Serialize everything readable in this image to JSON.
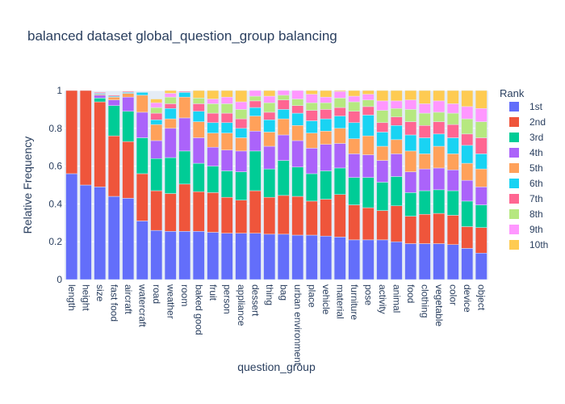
{
  "chart_data": {
    "type": "bar",
    "stacked": true,
    "title": "balanced dataset global_question_group balancing",
    "xlabel": "question_group",
    "ylabel": "Relative Frequency",
    "ylim": [
      0,
      1
    ],
    "yticks": [
      0,
      0.2,
      0.4,
      0.6,
      0.8,
      1
    ],
    "ytick_labels": [
      "0",
      "0.2",
      "0.4",
      "0.6",
      "0.8",
      "1"
    ],
    "legend_title": "Rank",
    "legend_position": "right",
    "categories": [
      "length",
      "height",
      "size",
      "fast food",
      "aircraft",
      "watercraft",
      "road",
      "weather",
      "room",
      "baked good",
      "fruit",
      "person",
      "appliance",
      "dessert",
      "thing",
      "bag",
      "urban environment",
      "place",
      "vehicle",
      "material",
      "furniture",
      "pose",
      "activity",
      "animal",
      "food",
      "clothing",
      "vegetable",
      "color",
      "device",
      "object"
    ],
    "series": [
      {
        "name": "1st",
        "color": "#636efa",
        "values": [
          0.56,
          0.5,
          0.49,
          0.44,
          0.43,
          0.31,
          0.26,
          0.255,
          0.255,
          0.255,
          0.25,
          0.245,
          0.245,
          0.245,
          0.24,
          0.24,
          0.235,
          0.235,
          0.23,
          0.225,
          0.21,
          0.21,
          0.21,
          0.2,
          0.19,
          0.19,
          0.19,
          0.185,
          0.165,
          0.14
        ]
      },
      {
        "name": "2nd",
        "color": "#ef553b",
        "values": [
          0.44,
          0.5,
          0.45,
          0.32,
          0.3,
          0.25,
          0.21,
          0.2,
          0.25,
          0.21,
          0.21,
          0.19,
          0.175,
          0.225,
          0.195,
          0.205,
          0.205,
          0.18,
          0.195,
          0.225,
          0.185,
          0.17,
          0.155,
          0.19,
          0.145,
          0.155,
          0.16,
          0.155,
          0.115,
          0.135
        ]
      },
      {
        "name": "3rd",
        "color": "#00cc96",
        "values": [
          0,
          0,
          0.02,
          0.16,
          0.16,
          0.19,
          0.17,
          0.19,
          0.175,
          0.15,
          0.14,
          0.14,
          0.15,
          0.21,
          0.15,
          0.185,
          0.155,
          0.145,
          0.15,
          0.14,
          0.145,
          0.16,
          0.15,
          0.155,
          0.125,
          0.125,
          0.125,
          0.13,
          0.135,
          0.12
        ]
      },
      {
        "name": "4th",
        "color": "#ab63fa",
        "values": [
          0,
          0,
          0.015,
          0.03,
          0.075,
          0.135,
          0.095,
          0.155,
          0.175,
          0.135,
          0.1,
          0.11,
          0.11,
          0.105,
          0.12,
          0.135,
          0.14,
          0.135,
          0.14,
          0.13,
          0.125,
          0.12,
          0.115,
          0.12,
          0.11,
          0.115,
          0.115,
          0.11,
          0.11,
          0.095
        ]
      },
      {
        "name": "5th",
        "color": "#ffa15a",
        "values": [
          0,
          0,
          0.005,
          0.015,
          0.02,
          0.09,
          0.085,
          0.05,
          0.11,
          0.085,
          0.075,
          0.09,
          0.07,
          0.08,
          0.075,
          0.085,
          0.08,
          0.08,
          0.07,
          0.08,
          0.08,
          0.1,
          0.075,
          0.075,
          0.11,
          0.08,
          0.115,
          0.085,
          0.09,
          0.095
        ]
      },
      {
        "name": "6th",
        "color": "#19d3f3",
        "values": [
          0,
          0,
          0.005,
          0.005,
          0.005,
          0.015,
          0.025,
          0.055,
          0.025,
          0.055,
          0.055,
          0.055,
          0.05,
          0.045,
          0.065,
          0.05,
          0.065,
          0.065,
          0.065,
          0.065,
          0.085,
          0.11,
          0.075,
          0.075,
          0.085,
          0.085,
          0.065,
          0.085,
          0.095,
          0.08
        ]
      },
      {
        "name": "7th",
        "color": "#ff6692",
        "values": [
          0,
          0,
          0.005,
          0.005,
          0.005,
          0,
          0.035,
          0.025,
          0.005,
          0.04,
          0.05,
          0.05,
          0.05,
          0.035,
          0.04,
          0.05,
          0.04,
          0.055,
          0.05,
          0.045,
          0.06,
          0.045,
          0.05,
          0.045,
          0.07,
          0.065,
          0.065,
          0.07,
          0.06,
          0.085
        ]
      },
      {
        "name": "8th",
        "color": "#b6e880",
        "values": [
          0,
          0,
          0,
          0,
          0,
          0,
          0.03,
          0.035,
          0,
          0.03,
          0.05,
          0.05,
          0.05,
          0.025,
          0.05,
          0.025,
          0.035,
          0.04,
          0.035,
          0.05,
          0.05,
          0.035,
          0.065,
          0.045,
          0.065,
          0.065,
          0.05,
          0.06,
          0.08,
          0.085
        ]
      },
      {
        "name": "9th",
        "color": "#ff97ff",
        "values": [
          0,
          0,
          0,
          0,
          0,
          0,
          0.025,
          0.02,
          0,
          0,
          0.025,
          0.035,
          0.04,
          0.03,
          0.035,
          0.025,
          0.045,
          0.045,
          0.03,
          0.035,
          0.03,
          0.03,
          0.05,
          0.04,
          0.05,
          0.05,
          0.06,
          0.05,
          0.065,
          0.07
        ]
      },
      {
        "name": "10th",
        "color": "#fecb52",
        "values": [
          0,
          0,
          0,
          0,
          0,
          0,
          0.02,
          0.015,
          0,
          0.04,
          0.045,
          0.035,
          0.06,
          0,
          0.03,
          0,
          0,
          0.02,
          0.035,
          0.005,
          0.03,
          0.02,
          0.055,
          0.055,
          0.05,
          0.07,
          0.055,
          0.07,
          0.085,
          0.095
        ]
      }
    ]
  }
}
